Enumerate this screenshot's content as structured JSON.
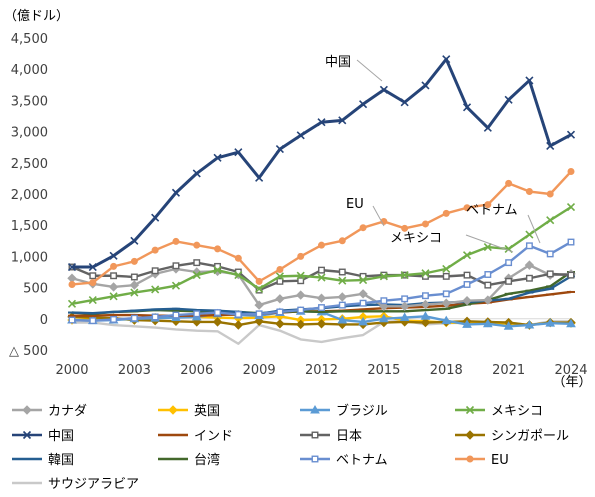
{
  "chart_data": {
    "type": "line",
    "ylabel": "（億ドル）",
    "xlabel": "（年）",
    "ylim": [
      -500,
      4500
    ],
    "xlim": [
      2000,
      2024
    ],
    "y_ticks": [
      4500,
      4000,
      3500,
      3000,
      2500,
      2000,
      1500,
      1000,
      500,
      0,
      -500
    ],
    "y_tick_labels": [
      "4,500",
      "4,000",
      "3,500",
      "3,000",
      "2,500",
      "2,000",
      "1,500",
      "1,000",
      "500",
      "0",
      "△ 500"
    ],
    "x_ticks": [
      2000,
      2003,
      2006,
      2009,
      2012,
      2015,
      2018,
      2021,
      2024
    ],
    "x_tick_labels": [
      "2000",
      "2003",
      "2006",
      "2009",
      "2012",
      "2015",
      "2018",
      "2021",
      "2024"
    ],
    "x": [
      2000,
      2001,
      2002,
      2003,
      2004,
      2005,
      2006,
      2007,
      2008,
      2009,
      2010,
      2011,
      2012,
      2013,
      2014,
      2015,
      2016,
      2017,
      2018,
      2019,
      2020,
      2021,
      2022,
      2023,
      2024
    ],
    "annotations": [
      "中国",
      "EU",
      "ベトナム",
      "メキシコ"
    ],
    "legend_position": "bottom",
    "series": [
      {
        "name": "カナダ",
        "color": "#a5a5a5",
        "marker": "diamond",
        "values": [
          650,
          560,
          510,
          540,
          720,
          800,
          750,
          760,
          710,
          220,
          320,
          380,
          330,
          350,
          400,
          200,
          200,
          230,
          250,
          290,
          300,
          650,
          860,
          700,
          720
        ]
      },
      {
        "name": "英国",
        "color": "#ffc000",
        "marker": "diamond",
        "values": [
          -20,
          -10,
          0,
          -20,
          20,
          30,
          30,
          20,
          10,
          20,
          40,
          -20,
          -10,
          0,
          30,
          40,
          -30,
          -40,
          -60,
          -70,
          -60,
          -80,
          -100,
          -60,
          -70
        ]
      },
      {
        "name": "ブラジル",
        "color": "#5b9bd5",
        "marker": "triangle",
        "values": [
          -20,
          -30,
          -20,
          0,
          10,
          20,
          30,
          80,
          60,
          50,
          100,
          120,
          110,
          -20,
          -50,
          0,
          20,
          40,
          -30,
          -90,
          -80,
          -120,
          -100,
          -70,
          -80
        ]
      },
      {
        "name": "メキシコ",
        "color": "#70ad47",
        "marker": "x",
        "values": [
          240,
          300,
          360,
          420,
          470,
          530,
          700,
          780,
          700,
          480,
          680,
          690,
          660,
          610,
          620,
          680,
          700,
          730,
          800,
          1020,
          1150,
          1120,
          1350,
          1580,
          1790
        ]
      },
      {
        "name": "中国",
        "color": "#264478",
        "marker": "x",
        "values": [
          830,
          830,
          1010,
          1250,
          1620,
          2020,
          2330,
          2580,
          2670,
          2260,
          2720,
          2940,
          3150,
          3180,
          3440,
          3670,
          3470,
          3740,
          4160,
          3390,
          3060,
          3510,
          3820,
          2770,
          2950
        ]
      },
      {
        "name": "インド",
        "color": "#9e480e",
        "marker": "dash",
        "values": [
          50,
          50,
          60,
          60,
          50,
          50,
          50,
          60,
          70,
          80,
          100,
          120,
          120,
          130,
          150,
          170,
          180,
          190,
          210,
          240,
          260,
          310,
          350,
          390,
          430
        ]
      },
      {
        "name": "日本",
        "color": "#636363",
        "marker": "square",
        "values": [
          830,
          690,
          690,
          670,
          770,
          850,
          900,
          840,
          750,
          460,
          600,
          610,
          780,
          750,
          680,
          700,
          700,
          680,
          680,
          700,
          540,
          600,
          650,
          720,
          700
        ]
      },
      {
        "name": "シンガポール",
        "color": "#997300",
        "marker": "diamond",
        "values": [
          30,
          20,
          10,
          -20,
          -30,
          -40,
          -50,
          -50,
          -100,
          -40,
          -80,
          -90,
          -80,
          -90,
          -90,
          -60,
          -50,
          -60,
          -50,
          -40,
          -50,
          -60,
          -100,
          -60,
          -60
        ]
      },
      {
        "name": "韓国",
        "color": "#255e91",
        "marker": "dash",
        "values": [
          100,
          90,
          110,
          130,
          150,
          160,
          140,
          130,
          110,
          80,
          130,
          150,
          170,
          200,
          220,
          230,
          220,
          250,
          260,
          270,
          290,
          320,
          420,
          480,
          680
        ]
      },
      {
        "name": "台湾",
        "color": "#43682b",
        "marker": "dash",
        "values": [
          100,
          80,
          110,
          120,
          140,
          130,
          120,
          120,
          110,
          90,
          110,
          120,
          110,
          120,
          120,
          120,
          120,
          140,
          160,
          230,
          300,
          400,
          450,
          520,
          750
        ]
      },
      {
        "name": "ベトナム",
        "color": "#698ed0",
        "marker": "square",
        "values": [
          -20,
          -30,
          -10,
          10,
          30,
          60,
          80,
          100,
          70,
          80,
          110,
          140,
          180,
          220,
          250,
          290,
          320,
          370,
          400,
          550,
          710,
          900,
          1170,
          1040,
          1230
        ]
      },
      {
        "name": "EU",
        "color": "#f1975a",
        "marker": "circle",
        "values": [
          550,
          580,
          840,
          920,
          1100,
          1240,
          1180,
          1120,
          970,
          600,
          790,
          1000,
          1180,
          1250,
          1460,
          1560,
          1450,
          1520,
          1690,
          1780,
          1830,
          2170,
          2040,
          2000,
          2360
        ]
      },
      {
        "name": "サウジアラビア",
        "color": "#c9c9c9",
        "marker": "none",
        "values": [
          -60,
          -60,
          -100,
          -120,
          -140,
          -170,
          -190,
          -200,
          -400,
          -100,
          -190,
          -330,
          -370,
          -310,
          -260,
          -50,
          -30,
          -90,
          -70,
          -60,
          -50,
          -60,
          -100,
          -40,
          -40
        ]
      }
    ]
  }
}
